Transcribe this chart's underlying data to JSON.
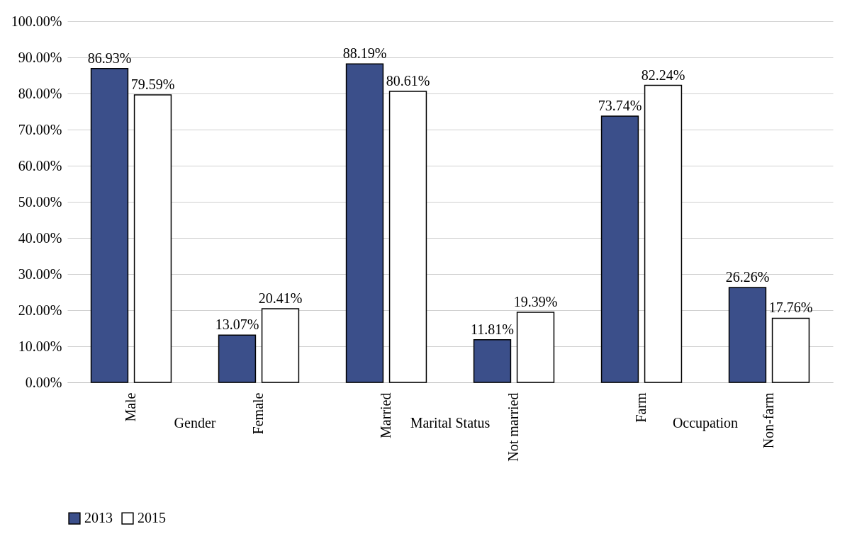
{
  "chart_data": {
    "type": "bar",
    "categories": [
      "Male",
      "Female",
      "Married",
      "Not married",
      "Farm",
      "Non-farm"
    ],
    "series": [
      {
        "name": "2013",
        "color": "#3b4f8a",
        "values": [
          86.93,
          13.07,
          88.19,
          11.81,
          73.74,
          26.26
        ],
        "value_labels": [
          "86.93%",
          "13.07%",
          "88.19%",
          "11.81%",
          "73.74%",
          "26.26%"
        ]
      },
      {
        "name": "2015",
        "color": "#ffffff",
        "values": [
          79.59,
          20.41,
          80.61,
          19.39,
          82.24,
          17.76
        ],
        "value_labels": [
          "79.59%",
          "20.41%",
          "80.61%",
          "19.39%",
          "82.24%",
          "17.76%"
        ]
      }
    ],
    "annotations": [
      "Gender",
      "Marital Status",
      "Occupation"
    ],
    "ylim": [
      0,
      100
    ],
    "yticks": [
      {
        "value": 0,
        "label": "0.00%"
      },
      {
        "value": 10,
        "label": "10.00%"
      },
      {
        "value": 20,
        "label": "20.00%"
      },
      {
        "value": 30,
        "label": "30.00%"
      },
      {
        "value": 40,
        "label": "40.00%"
      },
      {
        "value": 50,
        "label": "50.00%"
      },
      {
        "value": 60,
        "label": "60.00%"
      },
      {
        "value": 70,
        "label": "70.00%"
      },
      {
        "value": 80,
        "label": "80.00%"
      },
      {
        "value": 90,
        "label": "90.00%"
      },
      {
        "value": 100,
        "label": "100.00%"
      }
    ],
    "grid": "y",
    "legend": "bottom"
  }
}
